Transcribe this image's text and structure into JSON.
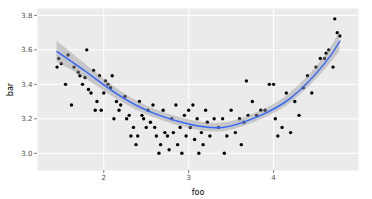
{
  "chart_data": {
    "type": "scatter",
    "xlabel": "foo",
    "ylabel": "bar",
    "xlim": [
      1.22,
      5.0
    ],
    "xticks": [
      2,
      3,
      4
    ],
    "ylim": [
      2.9,
      3.84
    ],
    "yticks": [
      {
        "value": 3.0,
        "label": "3.0"
      },
      {
        "value": 3.2,
        "label": "3.2"
      },
      {
        "value": 3.4,
        "label": "3.4"
      },
      {
        "value": 3.6,
        "label": "3.6"
      },
      {
        "value": 3.8,
        "label": "3.8"
      }
    ],
    "grid": true,
    "series": [
      {
        "type": "scatter",
        "color": "#000000",
        "marker": "circle",
        "x": [
          1.45,
          1.47,
          1.5,
          1.55,
          1.58,
          1.62,
          1.65,
          1.7,
          1.72,
          1.75,
          1.78,
          1.8,
          1.82,
          1.85,
          1.88,
          1.9,
          1.92,
          1.95,
          1.97,
          2.0,
          2.02,
          2.05,
          2.08,
          2.1,
          2.12,
          2.15,
          2.18,
          2.2,
          2.25,
          2.27,
          2.3,
          2.32,
          2.35,
          2.38,
          2.4,
          2.42,
          2.45,
          2.47,
          2.5,
          2.52,
          2.55,
          2.58,
          2.6,
          2.62,
          2.65,
          2.67,
          2.7,
          2.72,
          2.75,
          2.77,
          2.8,
          2.82,
          2.85,
          2.87,
          2.9,
          2.92,
          2.95,
          2.97,
          3.0,
          3.02,
          3.05,
          3.07,
          3.1,
          3.12,
          3.15,
          3.17,
          3.2,
          3.22,
          3.25,
          3.3,
          3.35,
          3.4,
          3.42,
          3.45,
          3.5,
          3.55,
          3.6,
          3.62,
          3.65,
          3.68,
          3.7,
          3.75,
          3.8,
          3.85,
          3.9,
          3.95,
          4.0,
          4.02,
          4.05,
          4.1,
          4.15,
          4.2,
          4.25,
          4.3,
          4.35,
          4.4,
          4.45,
          4.5,
          4.55,
          4.6,
          4.62,
          4.65,
          4.7,
          4.72,
          4.75,
          4.78
        ],
        "values": [
          3.5,
          3.55,
          3.52,
          3.4,
          3.57,
          3.28,
          3.5,
          3.47,
          3.45,
          3.4,
          3.44,
          3.6,
          3.37,
          3.35,
          3.48,
          3.25,
          3.3,
          3.45,
          3.25,
          3.35,
          3.42,
          3.4,
          3.38,
          3.45,
          3.2,
          3.3,
          3.25,
          3.28,
          3.33,
          3.2,
          3.22,
          3.1,
          3.15,
          3.05,
          3.1,
          3.3,
          3.22,
          3.2,
          3.15,
          3.25,
          3.18,
          3.28,
          3.15,
          3.1,
          3.0,
          3.05,
          3.25,
          3.12,
          3.1,
          3.02,
          3.2,
          3.12,
          3.28,
          3.05,
          3.15,
          3.0,
          3.22,
          3.1,
          3.25,
          3.15,
          3.28,
          3.08,
          3.2,
          3.0,
          3.12,
          3.05,
          3.25,
          3.18,
          3.1,
          3.2,
          3.15,
          3.2,
          3.0,
          3.1,
          3.25,
          3.12,
          3.2,
          3.05,
          3.18,
          3.42,
          3.22,
          3.3,
          3.22,
          3.25,
          3.25,
          3.4,
          3.4,
          3.2,
          3.1,
          3.15,
          3.35,
          3.12,
          3.3,
          3.22,
          3.38,
          3.45,
          3.35,
          3.5,
          3.55,
          3.55,
          3.58,
          3.6,
          3.5,
          3.78,
          3.7,
          3.68
        ]
      },
      {
        "type": "line",
        "color": "#3366FF",
        "line_style": "solid",
        "x": [
          1.45,
          1.8,
          2.2,
          2.6,
          3.0,
          3.4,
          3.8,
          4.2,
          4.6,
          4.78
        ],
        "values": [
          3.59,
          3.47,
          3.33,
          3.23,
          3.17,
          3.15,
          3.21,
          3.32,
          3.52,
          3.65
        ],
        "lower": [
          3.53,
          3.43,
          3.3,
          3.205,
          3.145,
          3.125,
          3.185,
          3.29,
          3.48,
          3.59
        ],
        "upper": [
          3.65,
          3.51,
          3.36,
          3.255,
          3.195,
          3.175,
          3.235,
          3.35,
          3.56,
          3.71
        ]
      }
    ]
  }
}
